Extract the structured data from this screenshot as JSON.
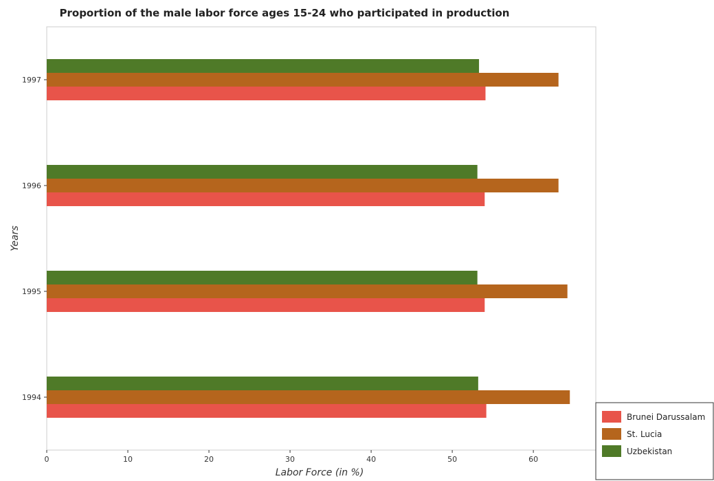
{
  "chart_data": {
    "type": "bar",
    "orientation": "horizontal",
    "title": "Proportion of the male labor force ages 15-24 who participated in production",
    "xlabel": "Labor Force (in %)",
    "ylabel": "Years",
    "categories": [
      "1994",
      "1995",
      "1996",
      "1997"
    ],
    "series": [
      {
        "name": "Brunei Darussalam",
        "color": "#e8544a",
        "values": [
          54.2,
          54.0,
          54.0,
          54.1
        ]
      },
      {
        "name": "St. Lucia",
        "color": "#b5651d",
        "values": [
          64.5,
          64.2,
          63.1,
          63.1
        ]
      },
      {
        "name": "Uzbekistan",
        "color": "#4f7a28",
        "values": [
          53.2,
          53.1,
          53.1,
          53.3
        ]
      }
    ],
    "xlim": [
      0,
      67.7
    ],
    "xticks": [
      0,
      10,
      20,
      30,
      40,
      50,
      60
    ],
    "grid": false,
    "legend_position": "bottom-right"
  }
}
